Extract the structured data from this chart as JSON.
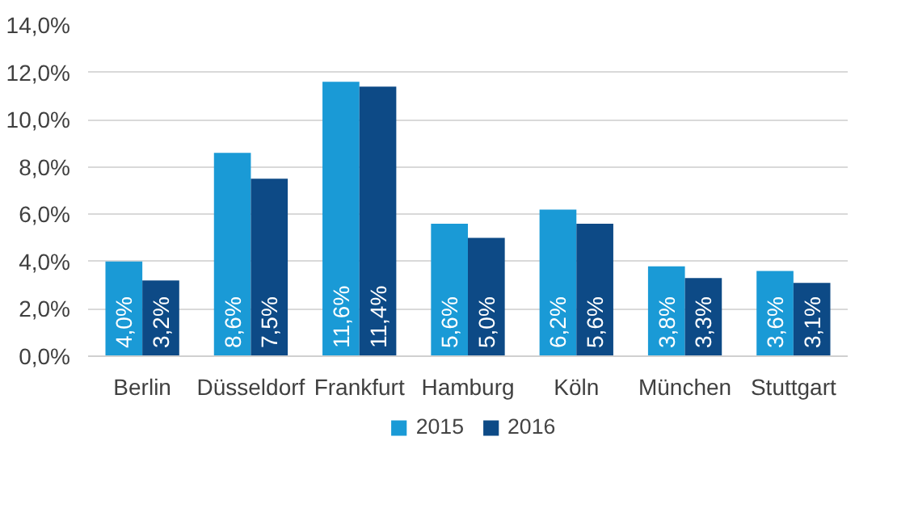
{
  "chart_data": {
    "type": "bar",
    "categories": [
      "Berlin",
      "Düsseldorf",
      "Frankfurt",
      "Hamburg",
      "Köln",
      "München",
      "Stuttgart"
    ],
    "series": [
      {
        "name": "2015",
        "color": "#1a9ad6",
        "values": [
          4.0,
          8.6,
          11.6,
          5.6,
          6.2,
          3.8,
          3.6
        ],
        "value_labels": [
          "4,0%",
          "8,6%",
          "11,6%",
          "5,6%",
          "6,2%",
          "3,8%",
          "3,6%"
        ]
      },
      {
        "name": "2016",
        "color": "#0d4a86",
        "values": [
          3.2,
          7.5,
          11.4,
          5.0,
          5.6,
          3.3,
          3.1
        ],
        "value_labels": [
          "3,2%",
          "7,5%",
          "11,4%",
          "5,0%",
          "5,6%",
          "3,3%",
          "3,1%"
        ]
      }
    ],
    "ylim": [
      0,
      14
    ],
    "yticks": [
      {
        "value": 0,
        "label": "0,0%"
      },
      {
        "value": 2,
        "label": "2,0%"
      },
      {
        "value": 4,
        "label": "4,0%"
      },
      {
        "value": 6,
        "label": "6,0%"
      },
      {
        "value": 8,
        "label": "8,0%"
      },
      {
        "value": 10,
        "label": "10,0%"
      },
      {
        "value": 12,
        "label": "12,0%"
      },
      {
        "value": 14,
        "label": "14,0%"
      }
    ],
    "grid": "y",
    "legend": "bottom"
  }
}
